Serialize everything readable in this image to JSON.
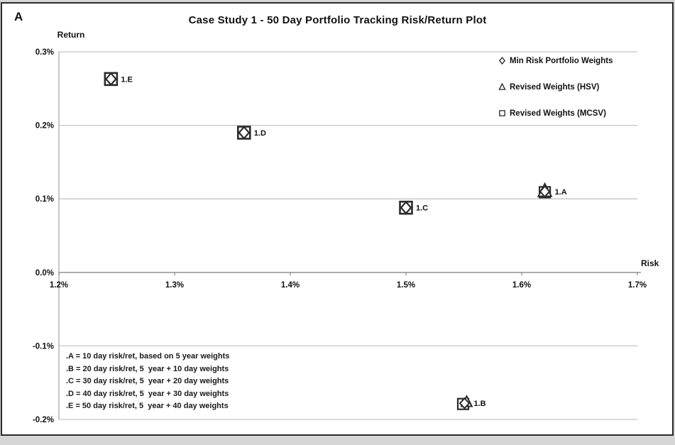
{
  "panel_label": "A",
  "colors": {
    "background": "#ffffff",
    "border": "#2a2a2a",
    "gridline": "#c4c4c4",
    "axis_line": "#9a9a9a",
    "y_axis_line": "#b4b4b4",
    "marker_stroke": "#2b2b2b",
    "text": "#111111"
  },
  "chart_data": {
    "type": "scatter",
    "title": "Case Study 1 - 50 Day Portfolio Tracking Risk/Return Plot",
    "xlabel": "Risk",
    "ylabel": "Return",
    "xlim": [
      1.2,
      1.7
    ],
    "ylim": [
      -0.2,
      0.3
    ],
    "x_tick_values": [
      1.2,
      1.3,
      1.4,
      1.5,
      1.6,
      1.7
    ],
    "x_tick_labels": [
      "1.2%",
      "1.3%",
      "1.4%",
      "1.5%",
      "1.6%",
      "1.7%"
    ],
    "y_tick_values": [
      0.3,
      0.2,
      0.1,
      0.0,
      -0.1,
      -0.2
    ],
    "y_tick_labels": [
      "0.3%",
      "0.2%",
      "0.1%",
      "0.0%",
      "-0.1%",
      "-0.2%"
    ],
    "grid": true,
    "legend_position": "top-right",
    "legend": [
      {
        "symbol": "diamond",
        "label": "Min Risk Portfolio Weights"
      },
      {
        "symbol": "triangle",
        "label": "Revised Weights (HSV)"
      },
      {
        "symbol": "square",
        "label": "Revised Weights (MCSV)"
      }
    ],
    "points": [
      {
        "label": "1.E",
        "risk_pct": 1.245,
        "return_pct": 0.263,
        "variant": "compact"
      },
      {
        "label": "1.D",
        "risk_pct": 1.36,
        "return_pct": 0.19,
        "variant": "compact"
      },
      {
        "label": "1.C",
        "risk_pct": 1.5,
        "return_pct": 0.088,
        "variant": "compact"
      },
      {
        "label": "1.A",
        "risk_pct": 1.62,
        "return_pct": 0.11,
        "variant": "triangle-top"
      },
      {
        "label": "1.B",
        "risk_pct": 1.55,
        "return_pct": -0.178,
        "variant": "jumbled"
      }
    ],
    "annotations": [
      ".A = 10 day risk/ret, based on 5 year weights",
      ".B = 20 day risk/ret, 5  year + 10 day weights",
      ".C = 30 day risk/ret, 5  year + 20 day weights",
      ".D = 40 day risk/ret, 5  year + 30 day weights",
      ".E = 50 day risk/ret, 5  year + 40 day weights"
    ]
  }
}
